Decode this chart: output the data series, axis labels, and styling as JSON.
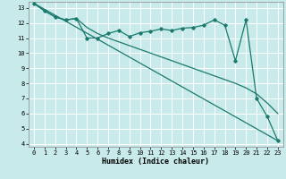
{
  "xlabel": "Humidex (Indice chaleur)",
  "bg_color": "#c8eaea",
  "grid_color": "#ffffff",
  "line_color": "#1a7a6e",
  "xlim": [
    -0.5,
    23.5
  ],
  "ylim": [
    3.8,
    13.4
  ],
  "xticks": [
    0,
    1,
    2,
    3,
    4,
    5,
    6,
    7,
    8,
    9,
    10,
    11,
    12,
    13,
    14,
    15,
    16,
    17,
    18,
    19,
    20,
    21,
    22,
    23
  ],
  "yticks": [
    4,
    5,
    6,
    7,
    8,
    9,
    10,
    11,
    12,
    13
  ],
  "line1_x": [
    0,
    1,
    2,
    3,
    4,
    5,
    6,
    7,
    8,
    9,
    10,
    11,
    12,
    13,
    14,
    15,
    16,
    17,
    18,
    19,
    20,
    21,
    22,
    23
  ],
  "line1_y": [
    13.3,
    12.8,
    12.4,
    12.2,
    12.3,
    11.0,
    11.0,
    11.3,
    11.5,
    11.1,
    11.35,
    11.45,
    11.6,
    11.5,
    11.65,
    11.7,
    11.85,
    12.2,
    11.85,
    9.5,
    12.2,
    7.0,
    5.8,
    4.2
  ],
  "line2_x": [
    0,
    1,
    2,
    3,
    4,
    5,
    6,
    7,
    8,
    9,
    10,
    11,
    12,
    13,
    14,
    15,
    16,
    17,
    18,
    19,
    20,
    21,
    22,
    23
  ],
  "line2_y": [
    13.3,
    12.8,
    12.4,
    12.2,
    12.3,
    11.7,
    11.3,
    11.0,
    10.75,
    10.5,
    10.25,
    10.0,
    9.75,
    9.5,
    9.25,
    9.0,
    8.75,
    8.5,
    8.25,
    8.0,
    7.7,
    7.3,
    6.7,
    6.0
  ],
  "line3_x": [
    0,
    23
  ],
  "line3_y": [
    13.3,
    4.2
  ]
}
